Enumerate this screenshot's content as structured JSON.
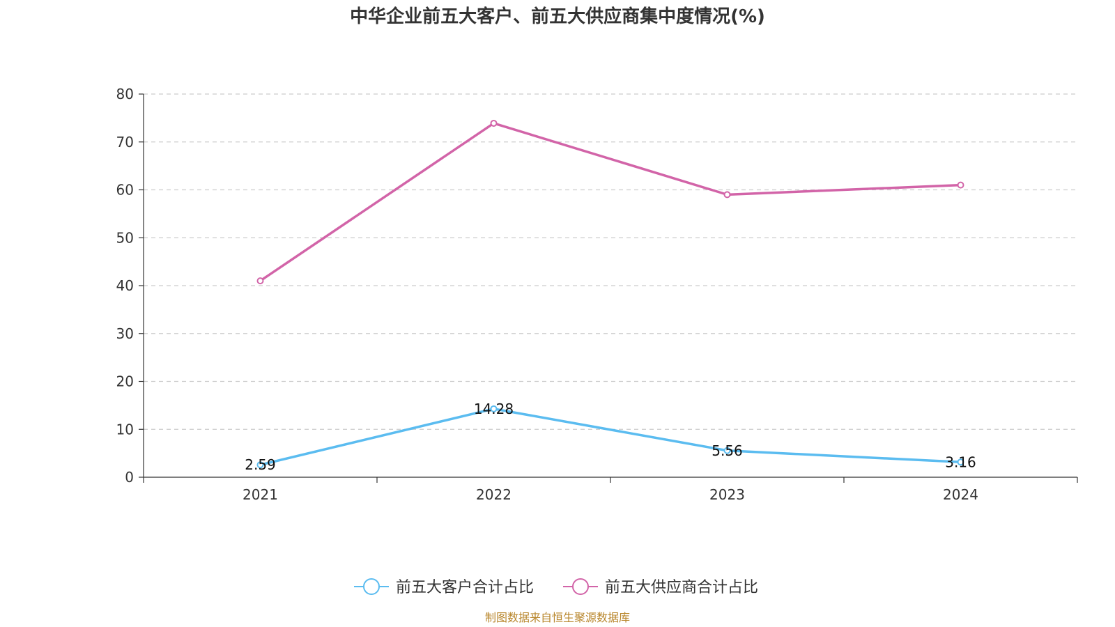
{
  "chart_data": {
    "type": "line",
    "title": "中华企业前五大客户、前五大供应商集中度情况(%)",
    "x": [
      "2021",
      "2022",
      "2023",
      "2024"
    ],
    "ylim": [
      0,
      80
    ],
    "yticks": [
      0,
      10,
      20,
      30,
      40,
      50,
      60,
      70,
      80
    ],
    "grid": true,
    "legend_position": "bottom",
    "series": [
      {
        "name": "前五大客户合计占比",
        "values": [
          2.59,
          14.28,
          5.56,
          3.16
        ],
        "color": "#5bbcf0",
        "labels": [
          "2.59",
          "14.28",
          "5.56",
          "3.16"
        ]
      },
      {
        "name": "前五大供应商合计占比",
        "values": [
          41.0,
          73.9,
          59.0,
          61.0
        ],
        "color": "#d264a8"
      }
    ]
  },
  "source": "制图数据来自恒生聚源数据库"
}
